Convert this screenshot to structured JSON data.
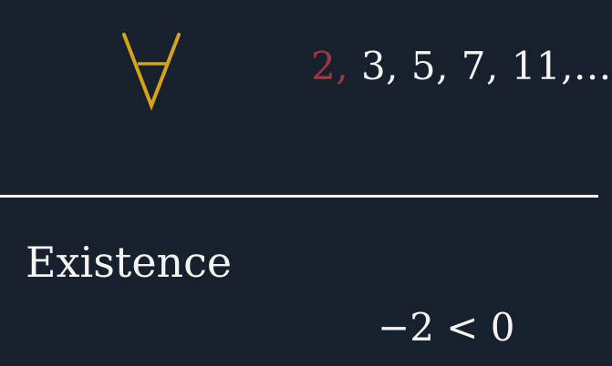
{
  "top": {
    "symbol_icon": "forall-quantifier-icon",
    "symbol_color": "#d4a21b",
    "sequence": {
      "highlight": "2,",
      "highlight_color": "#9b3b3e",
      "rest": "3, 5, 7, 11,..."
    }
  },
  "section": {
    "title": "Existence",
    "expression": "−2 < 0"
  },
  "colors": {
    "background": "#17202d",
    "text": "#f4f4f2",
    "divider": "#f2f2f2"
  }
}
